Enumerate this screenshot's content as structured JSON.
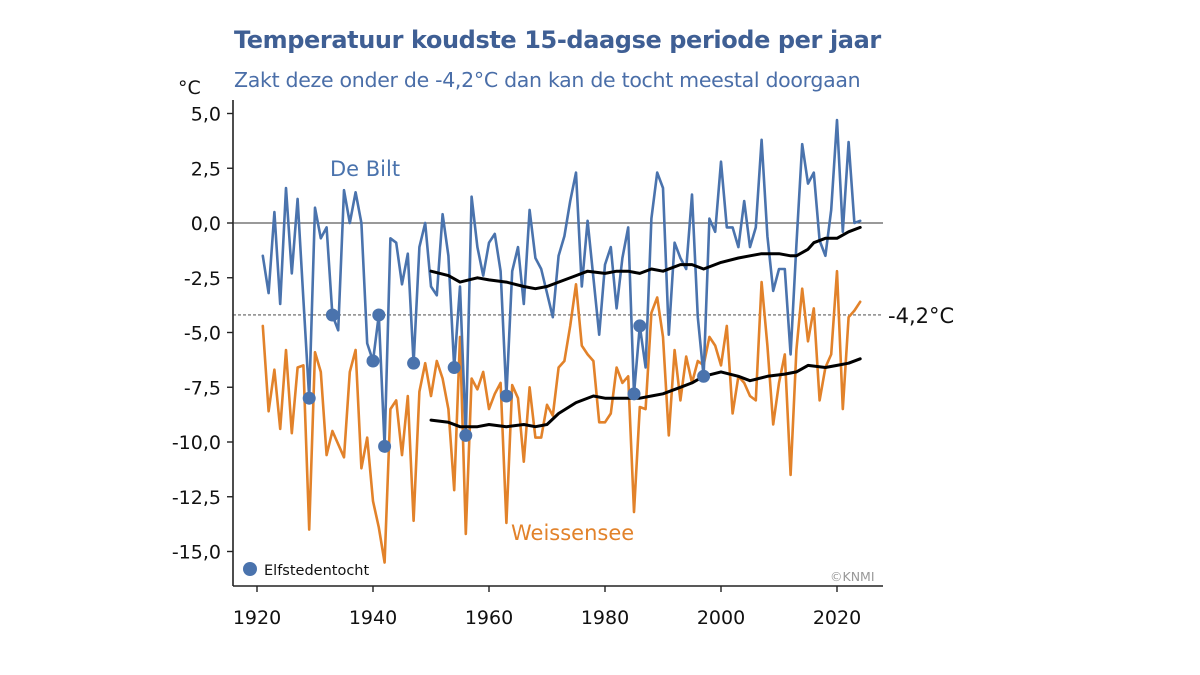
{
  "header": {
    "title": "Temperatuur koudste 15-daagse periode per jaar",
    "subtitle": "Zakt deze onder de -4,2°C dan kan de tocht meestal doorgaan",
    "unit": "°C"
  },
  "colors": {
    "de_bilt": "#4a73ad",
    "weissensee": "#e2822a",
    "trend": "#000000",
    "title": "#3f5f94"
  },
  "chart_data": {
    "type": "line",
    "title": "Temperatuur koudste 15-daagse periode per jaar",
    "subtitle": "Zakt deze onder de -4,2°C dan kan de tocht meestal doorgaan",
    "xlabel": "",
    "ylabel": "°C",
    "xlim": [
      1916,
      2028
    ],
    "ylim": [
      -16.5,
      5.5
    ],
    "x_ticks": [
      1920,
      1940,
      1960,
      1980,
      2000,
      2020
    ],
    "x_tick_labels": [
      "1920",
      "1940",
      "1960",
      "1980",
      "2000",
      "2020"
    ],
    "y_ticks": [
      5.0,
      2.5,
      0.0,
      -2.5,
      -5.0,
      -7.5,
      -10.0,
      -12.5,
      -15.0
    ],
    "y_tick_labels": [
      "5,0",
      "2,5",
      "0,0",
      "-2,5",
      "-5,0",
      "-7,5",
      "-10,0",
      "-12,5",
      "-15,0"
    ],
    "grid": false,
    "reference_lines": [
      {
        "y": 0.0,
        "style": "solid",
        "label": ""
      },
      {
        "y": -4.2,
        "style": "dashed",
        "label": "-4,2°C"
      }
    ],
    "series": [
      {
        "name": "De Bilt",
        "label": "De Bilt",
        "color": "#4a73ad",
        "x_start": 1921,
        "values": [
          -1.5,
          -3.2,
          0.5,
          -3.7,
          1.6,
          -2.3,
          1.1,
          -3.5,
          -8.0,
          0.7,
          -0.7,
          -0.2,
          -4.2,
          -4.9,
          1.5,
          0.0,
          1.4,
          0.0,
          -5.5,
          -6.3,
          -4.2,
          -10.2,
          -0.7,
          -0.9,
          -2.8,
          -1.4,
          -6.4,
          -1.1,
          0.0,
          -2.9,
          -3.3,
          0.4,
          -1.5,
          -6.6,
          -2.9,
          -9.7,
          1.2,
          -1.1,
          -2.4,
          -0.9,
          -0.5,
          -2.2,
          -7.9,
          -2.2,
          -1.1,
          -3.7,
          0.6,
          -1.6,
          -2.1,
          -3.2,
          -4.3,
          -1.5,
          -0.6,
          1.0,
          2.3,
          -2.9,
          0.1,
          -2.5,
          -5.1,
          -1.9,
          -1.1,
          -3.9,
          -1.6,
          -0.2,
          -7.8,
          -4.7,
          -6.6,
          0.2,
          2.3,
          1.6,
          -5.1,
          -0.9,
          -1.6,
          -2.1,
          1.3,
          -4.3,
          -7.0,
          0.2,
          -0.4,
          2.8,
          -0.2,
          -0.2,
          -1.1,
          1.0,
          -1.1,
          -0.2,
          3.8,
          -0.6,
          -3.1,
          -2.1,
          -2.1,
          -6.0,
          -1.0,
          3.6,
          1.8,
          2.3,
          -0.8,
          -1.5,
          0.6,
          4.7,
          -0.4,
          3.7,
          0.0,
          0.1
        ]
      },
      {
        "name": "Weissensee",
        "label": "Weissensee",
        "color": "#e2822a",
        "x_start": 1921,
        "values": [
          -4.7,
          -8.6,
          -6.7,
          -9.4,
          -5.8,
          -9.6,
          -6.6,
          -6.5,
          -14.0,
          -5.9,
          -6.8,
          -10.6,
          -9.5,
          -10.1,
          -10.7,
          -6.8,
          -5.8,
          -11.2,
          -9.8,
          -12.7,
          -13.9,
          -15.5,
          -8.5,
          -8.1,
          -10.6,
          -7.9,
          -13.6,
          -7.7,
          -6.4,
          -7.9,
          -6.3,
          -7.1,
          -8.5,
          -12.2,
          -5.2,
          -14.2,
          -7.1,
          -7.6,
          -6.8,
          -8.5,
          -7.8,
          -7.3,
          -13.7,
          -7.4,
          -8.0,
          -10.9,
          -7.5,
          -9.8,
          -9.8,
          -8.3,
          -8.8,
          -6.6,
          -6.3,
          -4.7,
          -2.8,
          -5.6,
          -6.0,
          -6.3,
          -9.1,
          -9.1,
          -8.7,
          -6.6,
          -7.3,
          -7.0,
          -13.2,
          -8.4,
          -8.5,
          -4.1,
          -3.4,
          -5.2,
          -9.7,
          -5.8,
          -8.1,
          -6.1,
          -7.3,
          -6.3,
          -6.5,
          -5.2,
          -5.6,
          -6.5,
          -4.7,
          -8.7,
          -7.0,
          -7.3,
          -7.9,
          -8.1,
          -2.7,
          -5.6,
          -9.2,
          -7.3,
          -6.0,
          -11.5,
          -5.8,
          -3.0,
          -5.4,
          -3.9,
          -8.1,
          -6.6,
          -6.0,
          -2.2,
          -8.5,
          -4.3,
          -4.0,
          -3.6
        ]
      },
      {
        "name": "De Bilt trend",
        "color": "#000000",
        "x": [
          1950,
          1953,
          1955,
          1958,
          1960,
          1963,
          1966,
          1968,
          1970,
          1972,
          1975,
          1977,
          1980,
          1982,
          1984,
          1986,
          1988,
          1990,
          1993,
          1995,
          1997,
          2000,
          2003,
          2005,
          2007,
          2010,
          2012,
          2013,
          2015,
          2016,
          2018,
          2020,
          2022,
          2024
        ],
        "values": [
          -2.2,
          -2.4,
          -2.7,
          -2.5,
          -2.6,
          -2.7,
          -2.9,
          -3.0,
          -2.9,
          -2.7,
          -2.4,
          -2.2,
          -2.3,
          -2.2,
          -2.2,
          -2.3,
          -2.1,
          -2.2,
          -1.9,
          -1.9,
          -2.1,
          -1.8,
          -1.6,
          -1.5,
          -1.4,
          -1.4,
          -1.5,
          -1.5,
          -1.2,
          -0.9,
          -0.7,
          -0.7,
          -0.4,
          -0.2
        ]
      },
      {
        "name": "Weissensee trend",
        "color": "#000000",
        "x": [
          1950,
          1953,
          1955,
          1958,
          1960,
          1963,
          1966,
          1968,
          1970,
          1972,
          1975,
          1978,
          1980,
          1983,
          1986,
          1988,
          1990,
          1993,
          1995,
          1997,
          2000,
          2003,
          2005,
          2008,
          2011,
          2013,
          2015,
          2018,
          2020,
          2022,
          2024
        ],
        "values": [
          -9.0,
          -9.1,
          -9.3,
          -9.3,
          -9.2,
          -9.3,
          -9.2,
          -9.3,
          -9.2,
          -8.7,
          -8.2,
          -7.9,
          -8.0,
          -8.0,
          -8.0,
          -7.9,
          -7.8,
          -7.5,
          -7.3,
          -7.0,
          -6.8,
          -7.0,
          -7.2,
          -7.0,
          -6.9,
          -6.8,
          -6.5,
          -6.6,
          -6.5,
          -6.4,
          -6.2
        ]
      }
    ],
    "markers": {
      "name": "Elfstedentocht",
      "color": "#4a73ad",
      "points": [
        {
          "x": 1929,
          "y": -8.0
        },
        {
          "x": 1933,
          "y": -4.2
        },
        {
          "x": 1940,
          "y": -6.3
        },
        {
          "x": 1941,
          "y": -4.2
        },
        {
          "x": 1942,
          "y": -10.2
        },
        {
          "x": 1947,
          "y": -6.4
        },
        {
          "x": 1954,
          "y": -6.6
        },
        {
          "x": 1956,
          "y": -9.7
        },
        {
          "x": 1963,
          "y": -7.9
        },
        {
          "x": 1985,
          "y": -7.8
        },
        {
          "x": 1986,
          "y": -4.7
        },
        {
          "x": 1997,
          "y": -7.0
        }
      ]
    },
    "legend": {
      "position": "bottom-left",
      "entries": [
        {
          "label": "Elfstedentocht",
          "marker": "circle",
          "color": "#4a73ad"
        }
      ]
    },
    "annotations": [
      "De Bilt",
      "Weissensee",
      "-4,2°C",
      "©KNMI"
    ],
    "credit": "©KNMI"
  }
}
